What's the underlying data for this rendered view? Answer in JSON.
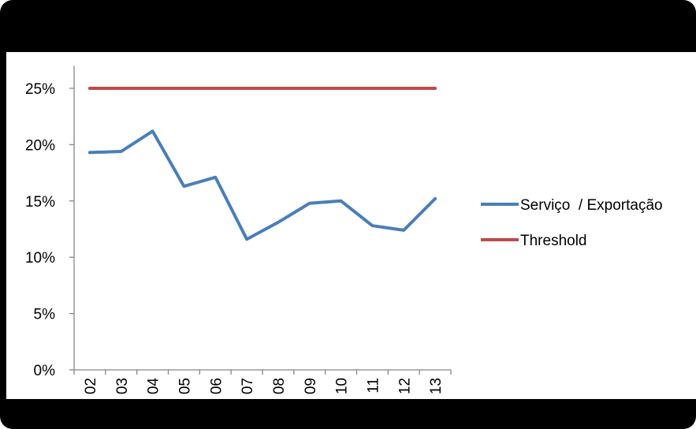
{
  "chart_data": {
    "type": "line",
    "title": "",
    "xlabel": "",
    "ylabel": "",
    "x": [
      "02",
      "03",
      "04",
      "05",
      "06",
      "07",
      "08",
      "09",
      "10",
      "11",
      "12",
      "13"
    ],
    "y_ticks": [
      "0%",
      "5%",
      "10%",
      "15%",
      "20%",
      "25%"
    ],
    "ylim": [
      0,
      0.27
    ],
    "grid": false,
    "legend_position": "right",
    "series": [
      {
        "name": "Serviço  / Exportação",
        "color": "#4a7ebb",
        "values": [
          0.193,
          0.194,
          0.212,
          0.163,
          0.171,
          0.116,
          0.131,
          0.148,
          0.15,
          0.128,
          0.124,
          0.152
        ]
      },
      {
        "name": "Threshold",
        "color": "#be4b48",
        "values": [
          0.25,
          0.25,
          0.25,
          0.25,
          0.25,
          0.25,
          0.25,
          0.25,
          0.25,
          0.25,
          0.25,
          0.25
        ]
      }
    ]
  }
}
